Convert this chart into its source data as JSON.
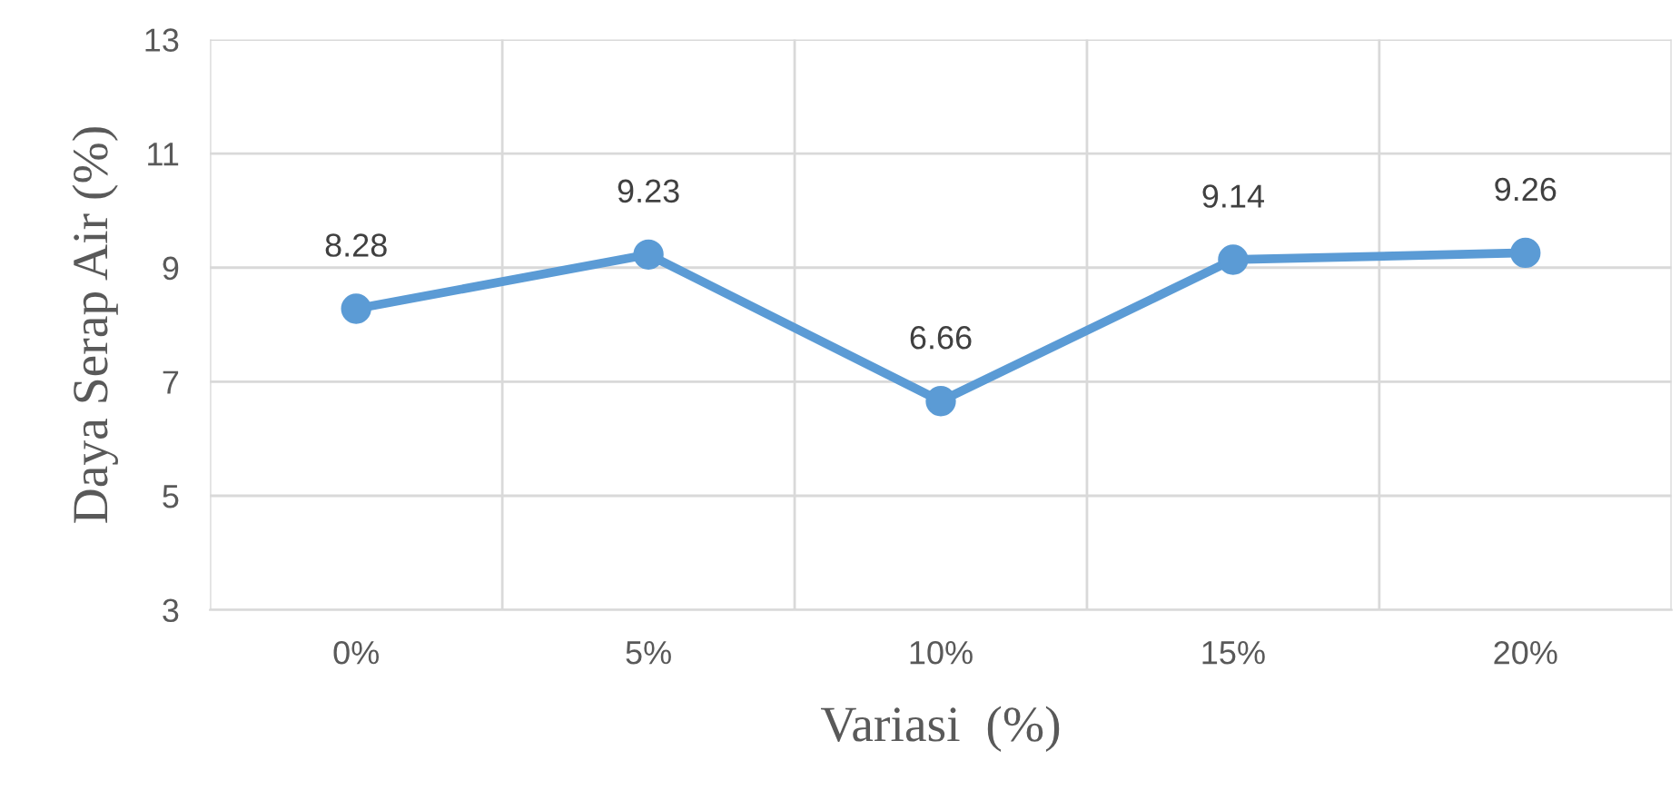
{
  "chart_data": {
    "type": "line",
    "xlabel": "Variasi  (%)",
    "ylabel": "Daya Serap Air (%)",
    "categories": [
      "0%",
      "5%",
      "10%",
      "15%",
      "20%"
    ],
    "series": [
      {
        "color": "#5b9bd5",
        "values": [
          8.28,
          9.23,
          6.66,
          9.14,
          9.26
        ]
      }
    ],
    "ylim": [
      3,
      13
    ],
    "yticks": [
      3,
      5,
      7,
      9,
      11,
      13
    ],
    "grid": true,
    "data_labels": true,
    "marker": "circle",
    "line_style": "solid"
  }
}
